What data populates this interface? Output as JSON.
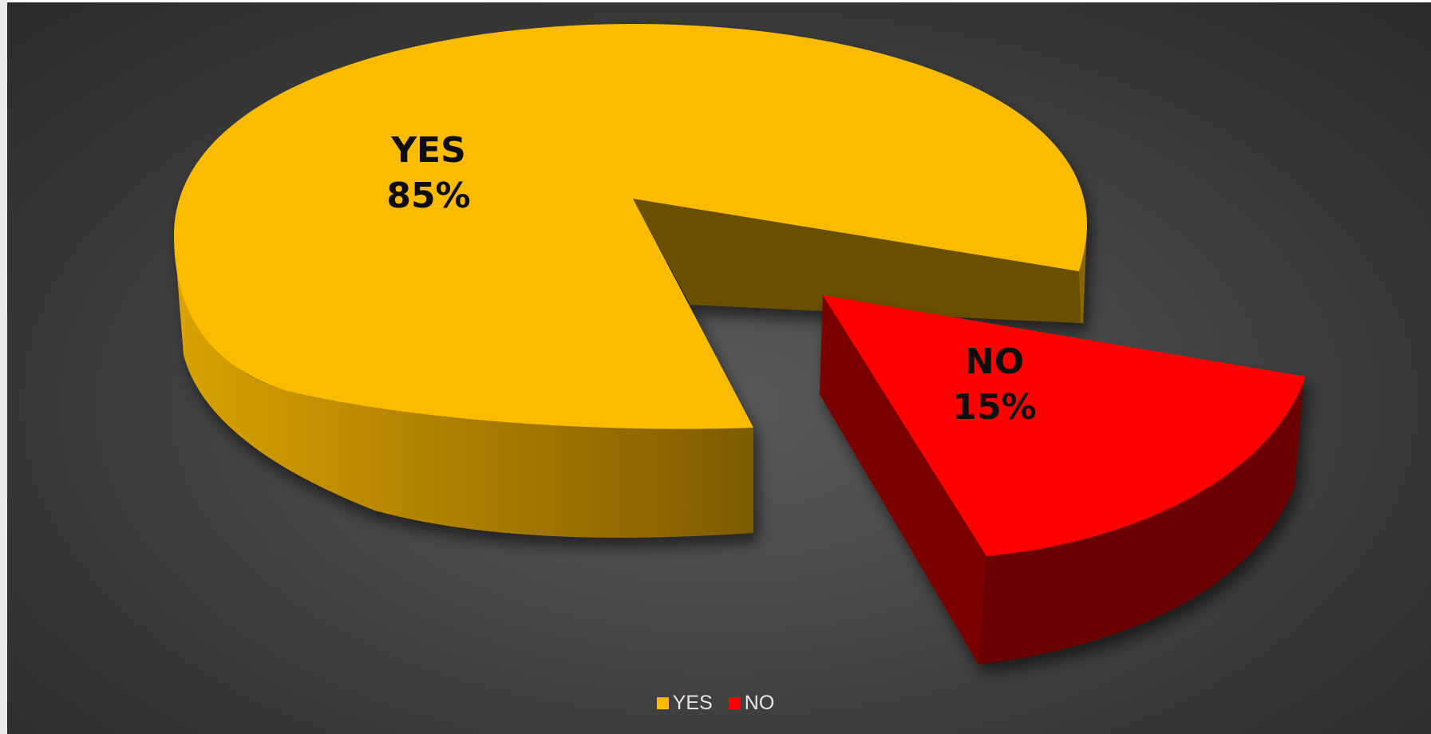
{
  "chart_data": {
    "type": "pie",
    "title": "",
    "categories": [
      "YES",
      "NO"
    ],
    "values": [
      85,
      15
    ],
    "data_labels": [
      {
        "category": "YES",
        "percent": "85%"
      },
      {
        "category": "NO",
        "percent": "15%"
      }
    ],
    "colors": {
      "YES": "#FBBC00",
      "NO": "#FF0000"
    },
    "style": "3d-exploded",
    "exploded_slice": "NO",
    "legend": {
      "position": "bottom",
      "entries": [
        "YES",
        "NO"
      ]
    },
    "background": "dark-gray-radial"
  }
}
